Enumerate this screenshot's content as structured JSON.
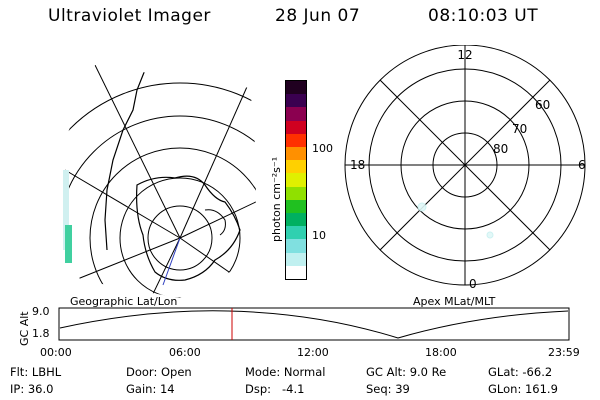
{
  "header": {
    "title": "Ultraviolet Imager",
    "date": "28 Jun 07",
    "time": "08:10:03 UT"
  },
  "geo_map": {
    "caption": "Geographic Lat/Lon"
  },
  "color_bar": {
    "unit_label": "photon cm⁻²s⁻¹",
    "tick_labels": [
      "100",
      "10"
    ],
    "colors_top_to_bottom": [
      "#200020",
      "#3a0050",
      "#8b0050",
      "#d00020",
      "#ff3000",
      "#ff9000",
      "#ffd000",
      "#e0f000",
      "#90e000",
      "#20c020",
      "#00b060",
      "#30d0b0",
      "#80e0e0",
      "#c0f0f0",
      "#ffffff"
    ]
  },
  "polar_plot": {
    "caption": "Apex MLat/MLT",
    "mlt_labels": {
      "top": "12",
      "left": "18",
      "right": "6",
      "bottom": "0"
    },
    "lat_labels": [
      "60",
      "70",
      "80"
    ]
  },
  "altitude_plot": {
    "y_axis_label": "GC Alt",
    "y_ticks": [
      "9.0",
      "1.8"
    ],
    "x_ticks": [
      "00:00",
      "06:00",
      "12:00",
      "18:00",
      "23:59"
    ],
    "current_time_marker": "08:10"
  },
  "info": {
    "flt_label": "Flt:",
    "flt_value": "LBHL",
    "ip_label": "IP:",
    "ip_value": "36.0",
    "door_label": "Door:",
    "door_value": "Open",
    "gain_label": "Gain:",
    "gain_value": "14",
    "mode_label": "Mode:",
    "mode_value": "Normal",
    "dsp_label": "Dsp:",
    "dsp_value": "-4.1",
    "gcalt_label": "GC Alt:",
    "gcalt_value": "9.0 Re",
    "seq_label": "Seq:",
    "seq_value": "39",
    "glat_label": "GLat:",
    "glat_value": "-66.2",
    "glon_label": "GLon:",
    "glon_value": "161.9"
  },
  "colors": {
    "orbit_line": "#000000",
    "time_marker": "#cc0000",
    "track_line": "#3040c0",
    "aurora_green": "#40d0a0",
    "aurora_cyan": "#a0e0e0"
  }
}
